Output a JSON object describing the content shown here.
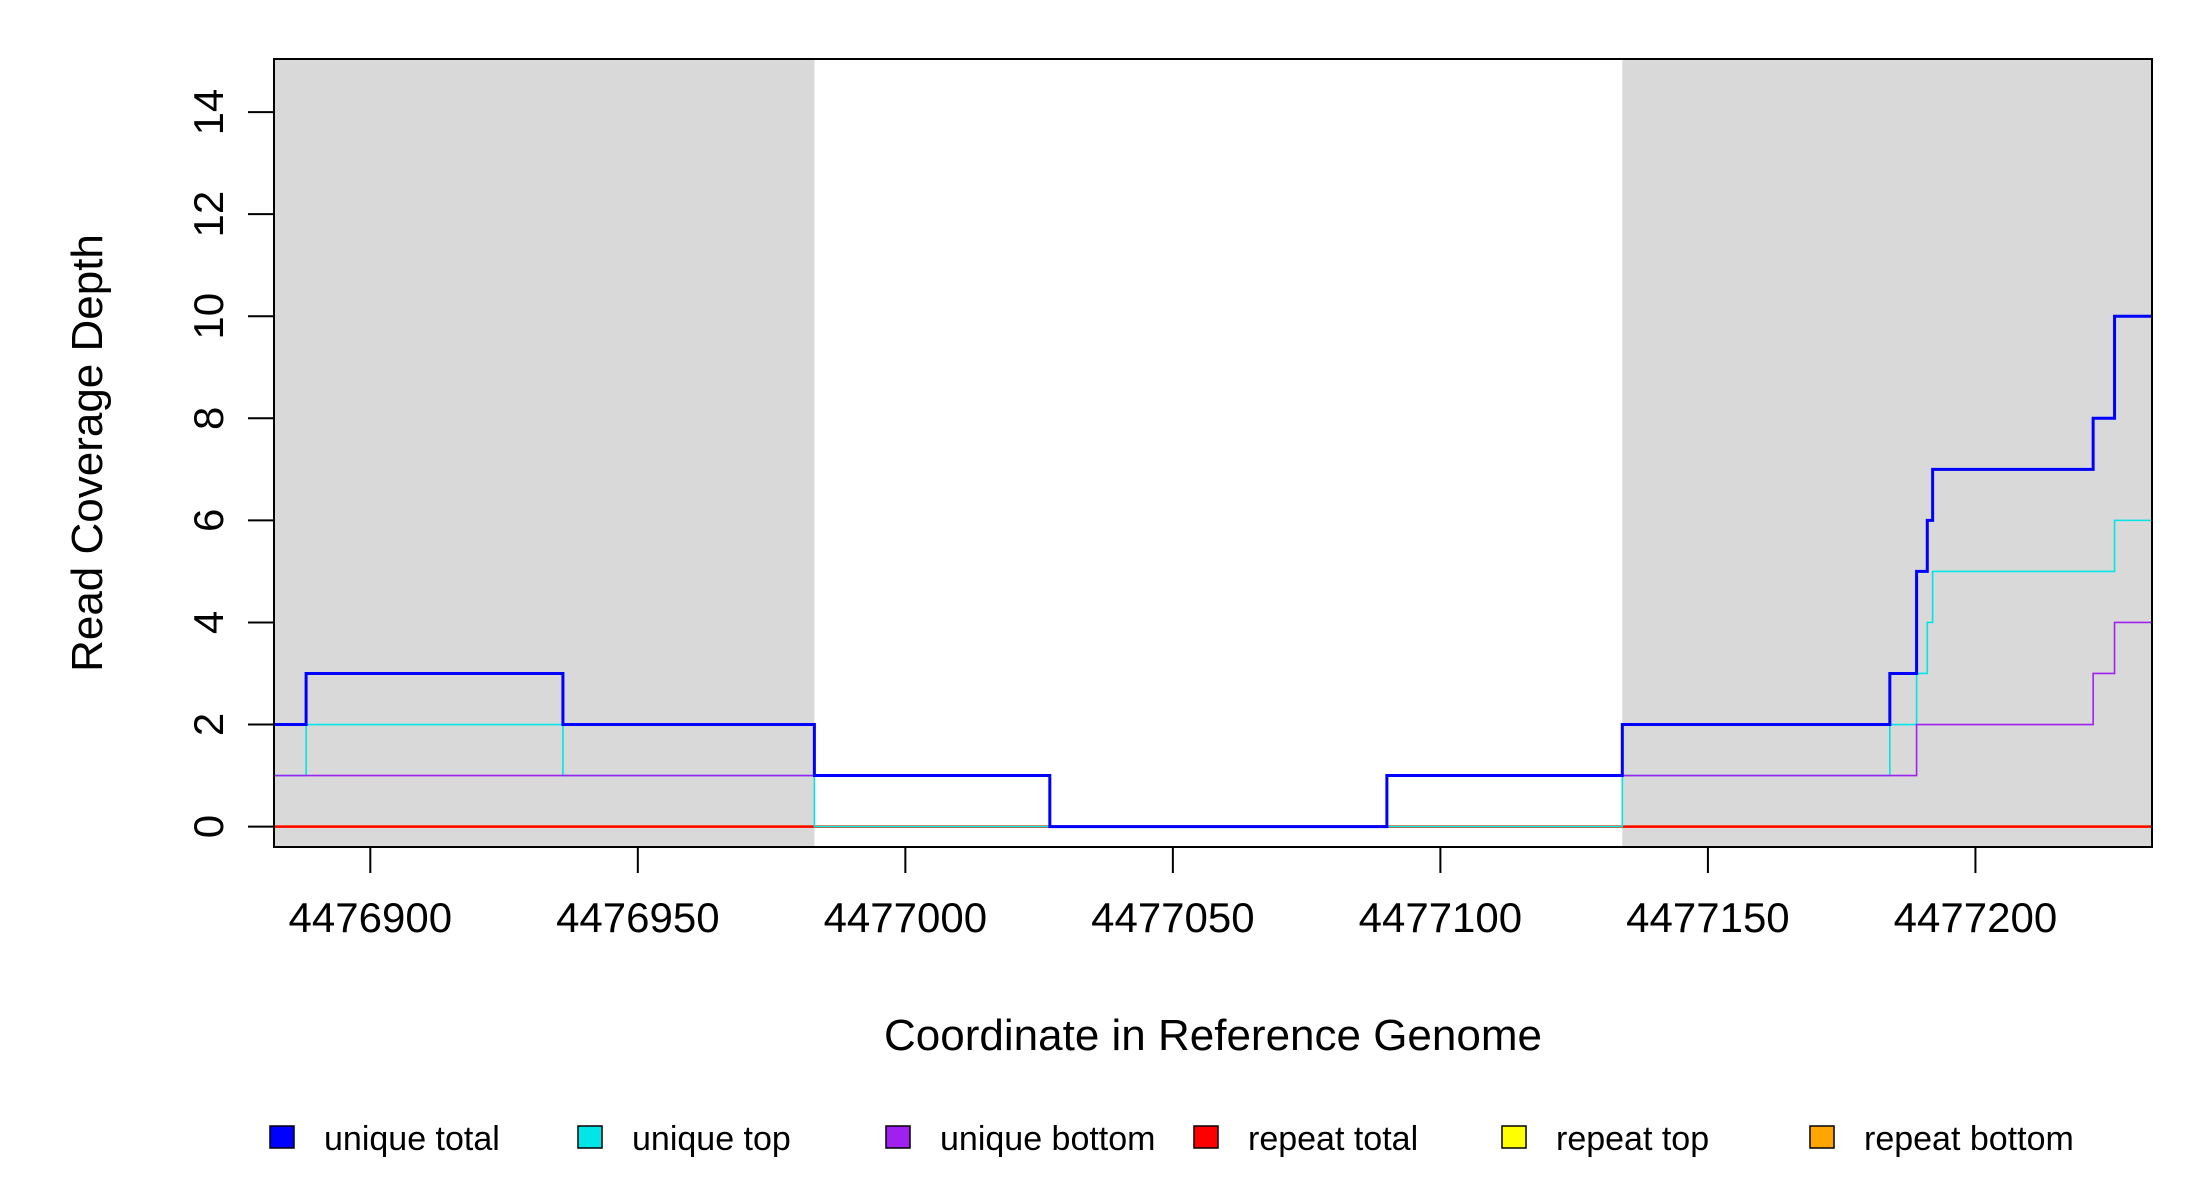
{
  "chart_data": {
    "type": "line",
    "line_style": "step",
    "xlabel": "Coordinate in Reference Genome",
    "ylabel": "Read Coverage Depth",
    "xlim": [
      4476882,
      4477233
    ],
    "ylim": [
      0,
      15
    ],
    "x_ticks": [
      4476900,
      4476950,
      4477000,
      4477050,
      4477100,
      4477150,
      4477200
    ],
    "y_ticks": [
      0,
      2,
      4,
      6,
      8,
      10,
      12,
      14
    ],
    "x_tick_labels": [
      "4476900",
      "4476950",
      "4477000",
      "4477050",
      "4477100",
      "4477150",
      "4477200"
    ],
    "y_tick_labels": [
      "0",
      "2",
      "4",
      "6",
      "8",
      "10",
      "12",
      "14"
    ],
    "shaded_regions": [
      {
        "x": [
          4476882,
          4476983
        ],
        "color": "#d9d9d9"
      },
      {
        "x": [
          4477134,
          4477233
        ],
        "color": "#d9d9d9"
      }
    ],
    "grid": false,
    "legend_position": "bottom",
    "series": [
      {
        "name": "unique total",
        "color": "#0000ff",
        "points": [
          [
            4476882,
            2
          ],
          [
            4476888,
            3
          ],
          [
            4476936,
            2
          ],
          [
            4476983,
            1
          ],
          [
            4477027,
            0
          ],
          [
            4477090,
            1
          ],
          [
            4477134,
            2
          ],
          [
            4477184,
            3
          ],
          [
            4477189,
            5
          ],
          [
            4477191,
            6
          ],
          [
            4477192,
            7
          ],
          [
            4477222,
            8
          ],
          [
            4477226,
            10
          ],
          [
            4477233,
            10
          ]
        ]
      },
      {
        "name": "unique top",
        "color": "#00e5e5",
        "points": [
          [
            4476882,
            1
          ],
          [
            4476888,
            2
          ],
          [
            4476936,
            1
          ],
          [
            4476983,
            0
          ],
          [
            4477134,
            1
          ],
          [
            4477184,
            2
          ],
          [
            4477189,
            3
          ],
          [
            4477191,
            4
          ],
          [
            4477192,
            5
          ],
          [
            4477226,
            6
          ],
          [
            4477233,
            6
          ]
        ]
      },
      {
        "name": "unique bottom",
        "color": "#a020f0",
        "points": [
          [
            4476882,
            1
          ],
          [
            4476983,
            1
          ],
          [
            4477027,
            0
          ],
          [
            4477090,
            1
          ],
          [
            4477189,
            2
          ],
          [
            4477222,
            3
          ],
          [
            4477226,
            4
          ],
          [
            4477233,
            4
          ]
        ]
      },
      {
        "name": "repeat total",
        "color": "#ff0000",
        "points": [
          [
            4476882,
            0
          ],
          [
            4477233,
            0
          ]
        ]
      },
      {
        "name": "repeat top",
        "color": "#ffff00",
        "points": [
          [
            4476882,
            0
          ],
          [
            4477233,
            0
          ]
        ]
      },
      {
        "name": "repeat bottom",
        "color": "#ffa500",
        "points": [
          [
            4476882,
            0
          ],
          [
            4477233,
            0
          ]
        ]
      }
    ]
  }
}
